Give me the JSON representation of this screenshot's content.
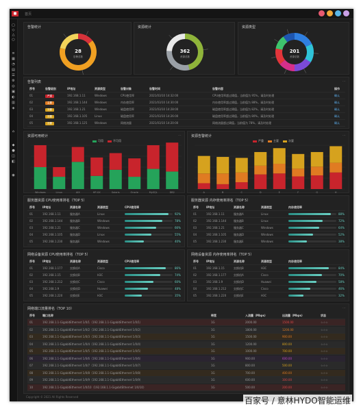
{
  "header": {
    "breadcrumb": "首页"
  },
  "donuts": [
    {
      "title": "告警统计",
      "center_value": "28",
      "center_label": "告警总数",
      "segments": [
        {
          "value": 4,
          "color": "#d6323a"
        },
        {
          "value": 18,
          "color": "#f0a022"
        },
        {
          "value": 6,
          "color": "#f2d35a"
        }
      ]
    },
    {
      "title": "资源统计",
      "center_value": "362",
      "center_label": "资源总数",
      "segments": [
        {
          "value": 46,
          "color": "#8fb43a"
        },
        {
          "value": 30,
          "color": "#9aa0a6"
        },
        {
          "value": 24,
          "color": "#e8e8e8"
        }
      ]
    },
    {
      "title": "资源类型",
      "center_value": "201",
      "center_label": "资源总数",
      "segments": [
        {
          "value": 18,
          "color": "#2f7fe0"
        },
        {
          "value": 16,
          "color": "#2fc3d8"
        },
        {
          "value": 16,
          "color": "#7b4ad8"
        },
        {
          "value": 14,
          "color": "#d62f8a"
        },
        {
          "value": 14,
          "color": "#e2353a"
        },
        {
          "value": 12,
          "color": "#3ec46d"
        },
        {
          "value": 10,
          "color": "#1e56b0"
        }
      ]
    }
  ],
  "alarm_list": {
    "title": "告警列表",
    "headers": [
      "序号",
      "告警级别",
      "IP地址",
      "资源类型",
      "告警对象",
      "告警时间",
      "告警内容",
      "操作"
    ],
    "rows": [
      {
        "no": "01",
        "sev": "严重",
        "sev_color": "#c8242c",
        "ip": "192.168.1.11",
        "type": "Windows",
        "obj": "CPU使用率",
        "time": "2021/03/10 14:32:00",
        "msg": "CPU使用率超过阈值，当前值为 95%，请及时处理",
        "op": "确认"
      },
      {
        "no": "02",
        "sev": "主要",
        "sev_color": "#e07b22",
        "ip": "192.168.1.144",
        "type": "Windows",
        "obj": "内存使用率",
        "time": "2021/03/10 14:30:00",
        "msg": "内存使用率超过阈值，当前值为 88%，请及时处理",
        "op": "确认"
      },
      {
        "no": "03",
        "sev": "次要",
        "sev_color": "#d6a21e",
        "ip": "192.168.1.21",
        "type": "Windows",
        "obj": "磁盘使用率",
        "time": "2021/03/10 14:28:00",
        "msg": "磁盘使用率超过阈值，当前值为 82%，请及时处理",
        "op": "确认"
      },
      {
        "no": "04",
        "sev": "次要",
        "sev_color": "#d6a21e",
        "ip": "192.168.1.105",
        "type": "Linux",
        "obj": "磁盘使用率",
        "time": "2021/03/10 14:26:00",
        "msg": "磁盘使用率超过阈值，当前值为 80%，请及时处理",
        "op": "确认"
      },
      {
        "no": "05",
        "sev": "次要",
        "sev_color": "#d6a21e",
        "ip": "192.168.1.125",
        "type": "Windows",
        "obj": "网络流量",
        "time": "2021/03/10 14:20:00",
        "msg": "网络流量超过阈值，当前值为 78%，请及时处理",
        "op": "确认"
      }
    ]
  },
  "bar_left": {
    "title": "资源可用统计",
    "legend": [
      {
        "label": "可用",
        "color": "#25a35a"
      },
      {
        "label": "不可用",
        "color": "#c8242c"
      }
    ],
    "categories": [
      "Windows",
      "Linux",
      "AIX",
      "HP-UX",
      "Solaris",
      "Oracle",
      "MySQL",
      "DB2"
    ],
    "series": [
      {
        "name": "可用",
        "color": "#25a35a",
        "values": [
          50,
          28,
          62,
          30,
          44,
          28,
          46,
          40
        ]
      },
      {
        "name": "不可用",
        "color": "#c8242c",
        "values": [
          50,
          22,
          34,
          42,
          38,
          42,
          54,
          66
        ]
      }
    ],
    "xlabels": [
      "Windows",
      "Linux",
      "AIX",
      "HP-UX"
    ]
  },
  "bar_right": {
    "title": "资源告警统计",
    "legend": [
      {
        "label": "严重",
        "color": "#c8242c"
      },
      {
        "label": "主要",
        "color": "#e07b22"
      },
      {
        "label": "次要",
        "color": "#d6a21e"
      }
    ],
    "categories": [
      "A",
      "B",
      "C",
      "D",
      "E",
      "F",
      "G",
      "H"
    ],
    "series": [
      {
        "name": "严重",
        "color": "#c8242c",
        "values": [
          12,
          10,
          14,
          30,
          32,
          26,
          28,
          34
        ]
      },
      {
        "name": "主要",
        "color": "#e07b22",
        "values": [
          20,
          22,
          20,
          18,
          20,
          16,
          18,
          20
        ]
      },
      {
        "name": "次要",
        "color": "#d6a21e",
        "values": [
          36,
          34,
          30,
          28,
          32,
          30,
          30,
          34
        ]
      }
    ]
  },
  "top_tables": [
    {
      "title": "服务器资源 CPU使用率排名（TOP 5）",
      "headers": [
        "序号",
        "IP地址",
        "资源名称",
        "资源类型",
        "CPU使用率"
      ],
      "rows": [
        {
          "no": "01",
          "ip": "192.168.1.11",
          "name": "服务器A",
          "type": "Linux",
          "val": 0.92,
          "label": "92%"
        },
        {
          "no": "02",
          "ip": "192.168.1.144",
          "name": "服务器B",
          "type": "Windows",
          "val": 0.78,
          "label": "78%"
        },
        {
          "no": "03",
          "ip": "192.168.1.21",
          "name": "服务器C",
          "type": "Windows",
          "val": 0.66,
          "label": "66%"
        },
        {
          "no": "04",
          "ip": "192.168.1.105",
          "name": "服务器D",
          "type": "Linux",
          "val": 0.55,
          "label": "55%"
        },
        {
          "no": "05",
          "ip": "192.168.1.230",
          "name": "服务器E",
          "type": "Windows",
          "val": 0.4,
          "label": "40%"
        }
      ]
    },
    {
      "title": "服务器资源 内存使用率排名（TOP 5）",
      "headers": [
        "序号",
        "IP地址",
        "资源名称",
        "资源类型",
        "内存使用率"
      ],
      "rows": [
        {
          "no": "01",
          "ip": "192.168.1.11",
          "name": "服务器A",
          "type": "Linux",
          "val": 0.88,
          "label": "88%"
        },
        {
          "no": "02",
          "ip": "192.168.1.144",
          "name": "服务器B",
          "type": "Linux",
          "val": 0.72,
          "label": "72%"
        },
        {
          "no": "03",
          "ip": "192.168.1.21",
          "name": "服务器C",
          "type": "Windows",
          "val": 0.64,
          "label": "64%"
        },
        {
          "no": "04",
          "ip": "192.168.1.105",
          "name": "服务器D",
          "type": "Windows",
          "val": 0.52,
          "label": "52%"
        },
        {
          "no": "05",
          "ip": "192.168.1.230",
          "name": "服务器E",
          "type": "Windows",
          "val": 0.38,
          "label": "38%"
        }
      ]
    },
    {
      "title": "网络设备资源 CPU使用率排名（TOP 5）",
      "headers": [
        "序号",
        "IP地址",
        "资源名称",
        "资源类型",
        "CPU使用率"
      ],
      "rows": [
        {
          "no": "01",
          "ip": "192.168.1.177",
          "name": "交换机A",
          "type": "Cisco",
          "val": 0.86,
          "label": "86%"
        },
        {
          "no": "02",
          "ip": "192.168.1.15",
          "name": "交换机B",
          "type": "H3C",
          "val": 0.74,
          "label": "74%"
        },
        {
          "no": "03",
          "ip": "192.168.1.212",
          "name": "交换机C",
          "type": "Cisco",
          "val": 0.6,
          "label": "60%"
        },
        {
          "no": "04",
          "ip": "192.168.1.9",
          "name": "交换机D",
          "type": "Huawei",
          "val": 0.48,
          "label": "48%"
        },
        {
          "no": "05",
          "ip": "192.168.1.220",
          "name": "交换机E",
          "type": "H3C",
          "val": 0.35,
          "label": "35%"
        }
      ]
    },
    {
      "title": "网络设备资源 内存使用率排名（TOP 5）",
      "headers": [
        "序号",
        "IP地址",
        "资源名称",
        "资源类型",
        "内存使用率"
      ],
      "rows": [
        {
          "no": "01",
          "ip": "192.168.1.15",
          "name": "交换机B",
          "type": "H3C",
          "val": 0.84,
          "label": "84%"
        },
        {
          "no": "02",
          "ip": "192.168.1.177",
          "name": "交换机A",
          "type": "Cisco",
          "val": 0.7,
          "label": "70%"
        },
        {
          "no": "03",
          "ip": "192.168.1.9",
          "name": "交换机D",
          "type": "Huawei",
          "val": 0.58,
          "label": "58%"
        },
        {
          "no": "04",
          "ip": "192.168.1.212",
          "name": "交换机C",
          "type": "Cisco",
          "val": 0.46,
          "label": "46%"
        },
        {
          "no": "05",
          "ip": "192.168.1.220",
          "name": "交换机E",
          "type": "H3C",
          "val": 0.32,
          "label": "32%"
        }
      ]
    }
  ],
  "port_table": {
    "title": "网络端口流量排名（TOP 10）",
    "headers": [
      "序号",
      "端口名称",
      "带宽",
      "入流量（Mbps）",
      "出流量（Mbps）",
      "状态"
    ],
    "rows": [
      {
        "no": "01",
        "name": "192.168.1.1-GigabitEthernet 1/0/1（192.168.1.1-GigabitEthernet 1/0/1）",
        "bw": "1G",
        "in": "2000.00",
        "out": "1500.00",
        "st": "☆☆☆",
        "tint": "#3a2424",
        "c": "#e04848"
      },
      {
        "no": "02",
        "name": "192.168.1.1-GigabitEthernet 1/0/2（192.168.1.1-GigabitEthernet 1/0/2）",
        "bw": "1G",
        "in": "1800.00",
        "out": "1200.00",
        "st": "☆☆☆",
        "tint": "#2a2a2a",
        "c": "#e07b22"
      },
      {
        "no": "03",
        "name": "192.168.1.1-GigabitEthernet 1/0/3（192.168.1.1-GigabitEthernet 1/0/3）",
        "bw": "1G",
        "in": "1500.00",
        "out": "900.00",
        "st": "☆☆☆",
        "tint": "#332a1e",
        "c": "#e07b22"
      },
      {
        "no": "04",
        "name": "192.168.1.1-GigabitEthernet 1/0/4（192.168.1.1-GigabitEthernet 1/0/4）",
        "bw": "1G",
        "in": "1200.00",
        "out": "800.00",
        "st": "☆☆☆",
        "tint": "#2a2a2a",
        "c": "#d6a21e"
      },
      {
        "no": "05",
        "name": "192.168.1.1-GigabitEthernet 1/0/5（192.168.1.1-GigabitEthernet 1/0/5）",
        "bw": "1G",
        "in": "1000.00",
        "out": "700.00",
        "st": "☆☆☆",
        "tint": "#332a1e",
        "c": "#d6a21e"
      },
      {
        "no": "06",
        "name": "192.168.1.1-GigabitEthernet 1/0/6（192.168.1.1-GigabitEthernet 1/0/6）",
        "bw": "1G",
        "in": "900.00",
        "out": "600.00",
        "st": "☆☆☆",
        "tint": "#2a2430",
        "c": "#c04ac8"
      },
      {
        "no": "07",
        "name": "192.168.1.1-GigabitEthernet 1/0/7（192.168.1.1-GigabitEthernet 1/0/7）",
        "bw": "1G",
        "in": "800.00",
        "out": "500.00",
        "st": "☆☆☆",
        "tint": "#2a2a2a",
        "c": "#d6a21e"
      },
      {
        "no": "08",
        "name": "192.168.1.1-GigabitEthernet 1/0/8（192.168.1.1-GigabitEthernet 1/0/8）",
        "bw": "1G",
        "in": "700.00",
        "out": "400.00",
        "st": "☆☆☆",
        "tint": "#332a1e",
        "c": "#e07b22"
      },
      {
        "no": "09",
        "name": "192.168.1.1-GigabitEthernet 1/0/9（192.168.1.1-GigabitEthernet 1/0/9）",
        "bw": "1G",
        "in": "600.00",
        "out": "300.00",
        "st": "☆☆☆",
        "tint": "#2a2a2a",
        "c": "#e04848"
      },
      {
        "no": "10",
        "name": "192.168.1.1-GigabitEthernet 1/0/10（192.168.1.1-GigabitEthernet 1/0/10）",
        "bw": "1G",
        "in": "500.00",
        "out": "200.00",
        "st": "☆☆☆",
        "tint": "#3a2424",
        "c": "#e04848"
      }
    ]
  },
  "footer": {
    "text": "Copyright © 2021 All Rights Reserved"
  },
  "watermark": "百家号 / 意林HYDO智能运维"
}
